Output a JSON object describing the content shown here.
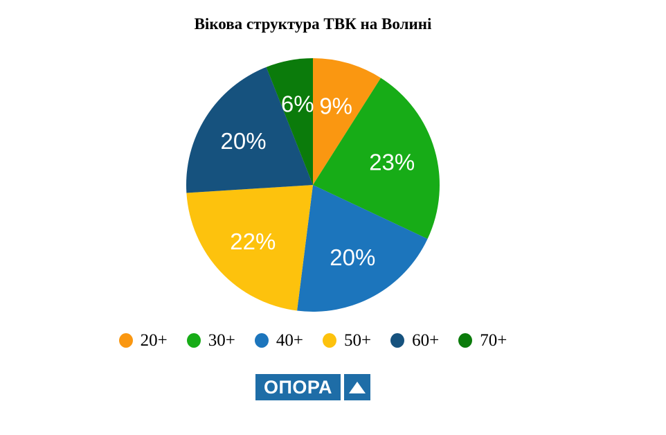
{
  "title": "Вікова структура ТВК на Волині",
  "chart_data": {
    "type": "pie",
    "title": "Вікова структура ТВК на Волині",
    "categories": [
      "20+",
      "30+",
      "40+",
      "50+",
      "60+",
      "70+"
    ],
    "values": [
      9,
      23,
      20,
      22,
      20,
      6
    ],
    "slice_labels": [
      "9%",
      "23%",
      "20%",
      "22%",
      "20%",
      "6%"
    ],
    "colors": [
      "#FA9711",
      "#17AC17",
      "#1C75BC",
      "#FDC20D",
      "#16527E",
      "#0B7B0B"
    ],
    "units": "percent",
    "start_angle_deg": 0,
    "direction": "clockwise",
    "slice_label_color": "#FFFFFF",
    "legend_position": "bottom"
  },
  "legend": {
    "items": [
      {
        "label": "20+",
        "color": "#FA9711"
      },
      {
        "label": "30+",
        "color": "#17AC17"
      },
      {
        "label": "40+",
        "color": "#1C75BC"
      },
      {
        "label": "50+",
        "color": "#FDC20D"
      },
      {
        "label": "60+",
        "color": "#16527E"
      },
      {
        "label": "70+",
        "color": "#0B7B0B"
      }
    ]
  },
  "logo": {
    "text": "ОПОРА",
    "mark": "triangle-up",
    "background_color": "#1E6DA7",
    "text_color": "#FFFFFF"
  }
}
